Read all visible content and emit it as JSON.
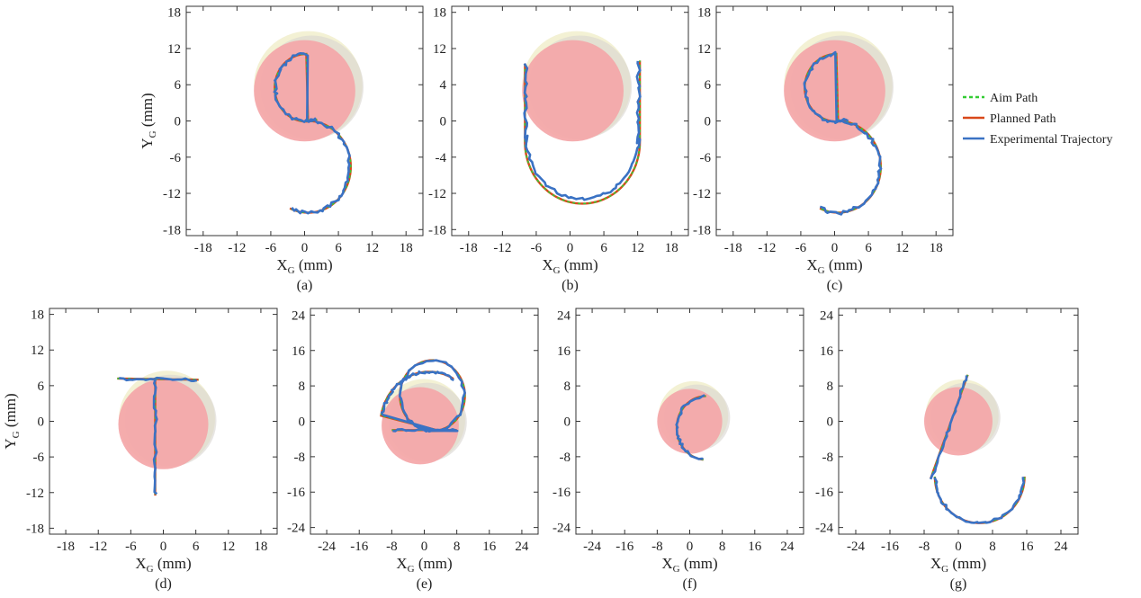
{
  "chart_data": [
    {
      "id": "a",
      "type": "line",
      "caption": "(a)",
      "xlabel": "X",
      "xlabel_sub": "G",
      "xlabel_unit": " (mm)",
      "ylabel": "Y",
      "ylabel_sub": "G",
      "ylabel_unit": " (mm)",
      "xlim": [
        -21,
        21
      ],
      "ylim": [
        -19,
        19
      ],
      "xticks": [
        -18,
        -12,
        -6,
        0,
        6,
        12,
        18
      ],
      "yticks": [
        18,
        12,
        6,
        0,
        -6,
        -12,
        -18
      ],
      "shape": "S"
    },
    {
      "id": "b",
      "type": "line",
      "caption": "(b)",
      "xlabel": "X",
      "xlabel_sub": "G",
      "xlabel_unit": " (mm)",
      "ylabel": "",
      "ylabel_sub": "",
      "ylabel_unit": "",
      "xlim": [
        -21,
        21
      ],
      "ylim": [
        -19,
        19
      ],
      "xticks": [
        -18,
        -12,
        -6,
        0,
        6,
        12,
        18
      ],
      "yticks": [
        18,
        12,
        4,
        0,
        -4,
        -12,
        -18
      ],
      "shape": "U"
    },
    {
      "id": "c",
      "type": "line",
      "caption": "(c)",
      "xlabel": "X",
      "xlabel_sub": "G",
      "xlabel_unit": " (mm)",
      "ylabel": "",
      "ylabel_sub": "",
      "ylabel_unit": "",
      "xlim": [
        -21,
        21
      ],
      "ylim": [
        -19,
        19
      ],
      "xticks": [
        -18,
        -12,
        -6,
        0,
        6,
        12,
        18
      ],
      "yticks": [
        18,
        12,
        6,
        0,
        -6,
        -12,
        -18
      ],
      "shape": "S"
    },
    {
      "id": "d",
      "type": "line",
      "caption": "(d)",
      "xlabel": "X",
      "xlabel_sub": "G",
      "xlabel_unit": " (mm)",
      "ylabel": "Y",
      "ylabel_sub": "G",
      "ylabel_unit": " (mm)",
      "xlim": [
        -21,
        21
      ],
      "ylim": [
        -19,
        19
      ],
      "xticks": [
        -18,
        -12,
        -6,
        0,
        6,
        12,
        18
      ],
      "yticks": [
        18,
        12,
        6,
        0,
        -6,
        -12,
        -18
      ],
      "shape": "T"
    },
    {
      "id": "e",
      "type": "line",
      "caption": "(e)",
      "xlabel": "X",
      "xlabel_sub": "G",
      "xlabel_unit": " (mm)",
      "ylabel": "",
      "ylabel_sub": "",
      "ylabel_unit": "",
      "xlim": [
        -28,
        28
      ],
      "ylim": [
        -25.5,
        25.5
      ],
      "xticks": [
        -24,
        -16,
        -8,
        0,
        8,
        16,
        24
      ],
      "yticks": [
        24,
        16,
        8,
        0,
        -8,
        -16,
        -24
      ],
      "shape": "e"
    },
    {
      "id": "f",
      "type": "line",
      "caption": "(f)",
      "xlabel": "X",
      "xlabel_sub": "G",
      "xlabel_unit": " (mm)",
      "ylabel": "",
      "ylabel_sub": "",
      "ylabel_unit": "",
      "xlim": [
        -28,
        28
      ],
      "ylim": [
        -25.5,
        25.5
      ],
      "xticks": [
        -24,
        -16,
        -8,
        0,
        8,
        16,
        24
      ],
      "yticks": [
        24,
        16,
        8,
        0,
        -8,
        -16,
        -24
      ],
      "shape": "c"
    },
    {
      "id": "g",
      "type": "line",
      "caption": "(g)",
      "xlabel": "X",
      "xlabel_sub": "G",
      "xlabel_unit": " (mm)",
      "ylabel": "",
      "ylabel_sub": "",
      "ylabel_unit": "",
      "xlim": [
        -28,
        28
      ],
      "ylim": [
        -25.5,
        25.5
      ],
      "xticks": [
        -24,
        -16,
        -8,
        0,
        8,
        16,
        24
      ],
      "yticks": [
        24,
        16,
        8,
        0,
        -8,
        -16,
        -24
      ],
      "shape": "h"
    }
  ],
  "legend": {
    "placement": "right",
    "entries": [
      {
        "label": "Aim Path",
        "color": "#33cc33",
        "style": "dashed"
      },
      {
        "label": "Planned Path",
        "color": "#d9481a",
        "style": "solid"
      },
      {
        "label": "Experimental Trajectory",
        "color": "#3a72c4",
        "style": "solid"
      }
    ]
  },
  "colors": {
    "aim": "#33cc33",
    "planned": "#d9481a",
    "experimental": "#3a72c4",
    "disc": "#f4a6a8",
    "rim": "#f2efcf",
    "frame": "#333333"
  }
}
